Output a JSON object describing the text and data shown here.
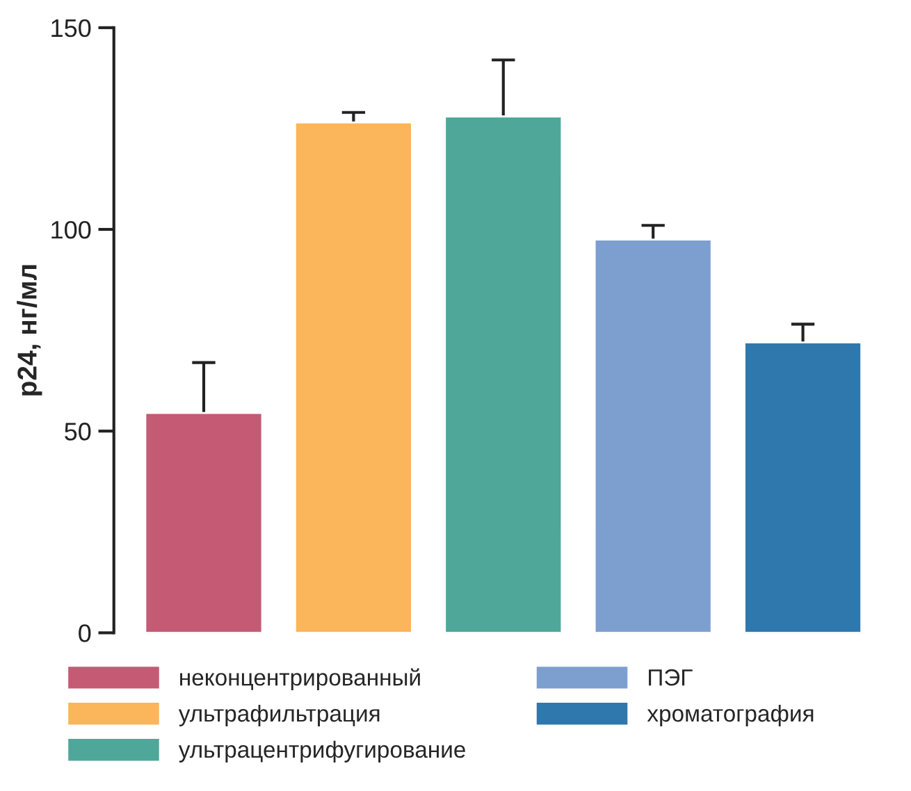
{
  "chart_data": {
    "type": "bar",
    "ylabel": "p24, нг/мл",
    "categories": [
      null,
      null,
      null,
      null,
      null
    ],
    "stacked": true,
    "series": [
      {
        "name": "неконцентрированный",
        "color": "#c45a73",
        "values": [
          54.5,
          null,
          null,
          null,
          null
        ],
        "errors": [
          [
            54.5,
            67
          ],
          null,
          null,
          null,
          null
        ]
      },
      {
        "name": "ультрафильтрация",
        "color": "#fbb55a",
        "values": [
          null,
          126.5,
          null,
          null,
          null
        ],
        "errors": [
          null,
          [
            126.5,
            129
          ],
          null,
          null,
          null
        ]
      },
      {
        "name": "ультрацентрифугирование",
        "color": "#4fa79a",
        "values": [
          null,
          null,
          128,
          null,
          null
        ],
        "errors": [
          null,
          null,
          [
            128,
            142
          ],
          null,
          null
        ]
      },
      {
        "name": "ПЭГ",
        "color": "#7d9fd0",
        "values": [
          null,
          null,
          null,
          97.5,
          null
        ],
        "errors": [
          null,
          null,
          null,
          [
            97.5,
            101
          ],
          null
        ]
      },
      {
        "name": "хроматография",
        "color": "#2f78ad",
        "values": [
          null,
          null,
          null,
          null,
          72
        ],
        "errors": [
          null,
          null,
          null,
          null,
          [
            72,
            76.5
          ]
        ]
      }
    ],
    "ylim": [
      0,
      150
    ],
    "yticks": [
      0,
      50,
      100,
      150
    ],
    "grid": false,
    "legend": "bottom",
    "tick_labels": "y"
  }
}
